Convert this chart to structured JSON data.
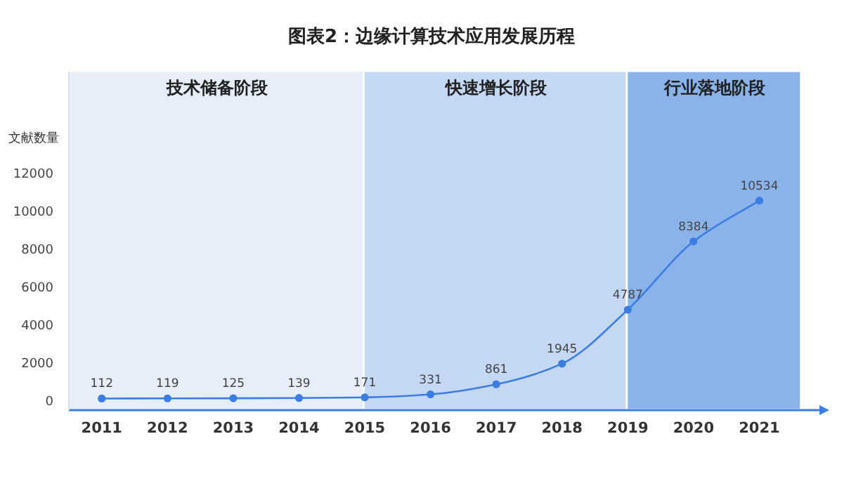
{
  "chart_data": {
    "type": "line",
    "title": "图表2：边缘计算技术应用发展历程",
    "ylabel": "文献数量",
    "x": [
      2011,
      2012,
      2013,
      2014,
      2015,
      2016,
      2017,
      2018,
      2019,
      2020,
      2021
    ],
    "series": [
      {
        "color": "#3b7de0",
        "values": [
          112,
          119,
          125,
          139,
          171,
          331,
          861,
          1945,
          4787,
          8384,
          10534
        ]
      }
    ],
    "xlim": [
      2010.5,
      2022
    ],
    "xticks": [
      2011,
      2012,
      2013,
      2014,
      2015,
      2016,
      2017,
      2018,
      2019,
      2020,
      2021
    ],
    "ylim": [
      -500,
      17300
    ],
    "yticks": [
      0,
      2000,
      4000,
      6000,
      8000,
      10000,
      12000
    ],
    "marker": "circle",
    "data_labels": true,
    "grid": false,
    "bands": [
      {
        "axis": "x",
        "from": 2010.5,
        "to": 2015,
        "label": "技术储备阶段",
        "color": "#e6eef9"
      },
      {
        "axis": "x",
        "from": 2015,
        "to": 2019,
        "label": "快速增长阶段",
        "color": "#c4d8f4"
      },
      {
        "axis": "x",
        "from": 2019,
        "to": 2021.65,
        "label": "行业落地阶段",
        "color": "#8ab3eb"
      }
    ]
  }
}
